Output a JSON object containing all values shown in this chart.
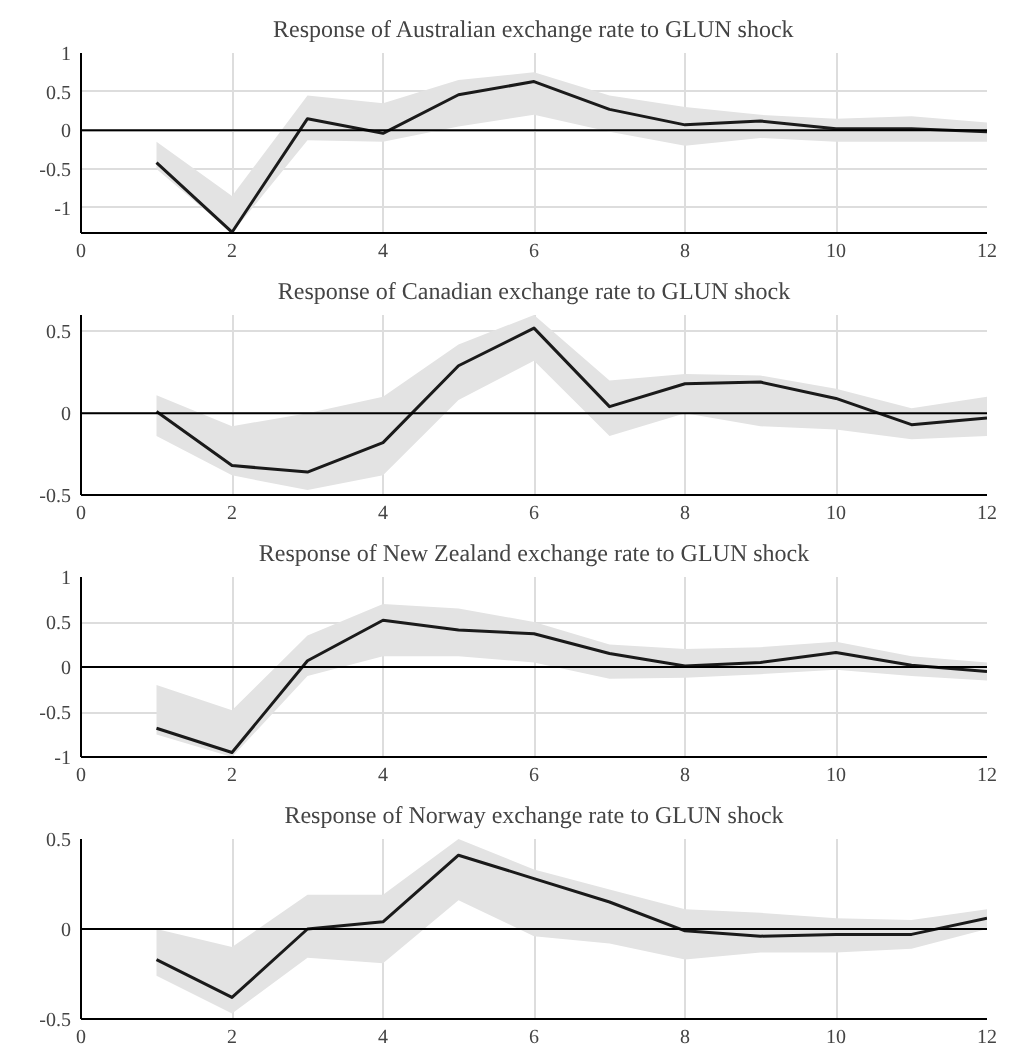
{
  "chart_data": [
    {
      "type": "line",
      "title": "Response of Australian exchange rate to GLUN shock",
      "x": [
        1,
        2,
        3,
        4,
        5,
        6,
        7,
        8,
        9,
        10,
        11,
        12
      ],
      "xlim": [
        0,
        12
      ],
      "xticks": [
        0,
        2,
        4,
        6,
        8,
        10,
        12
      ],
      "ylim": [
        -1.33,
        1
      ],
      "yticks": [
        -1,
        -0.5,
        0,
        0.5,
        1
      ],
      "grid": true,
      "ref_lines": [
        {
          "axis": "y",
          "value": 0,
          "color": "#000000"
        }
      ],
      "series": [
        {
          "color": "#1a1a1a",
          "values": [
            -0.42,
            -1.32,
            0.15,
            -0.04,
            0.46,
            0.63,
            0.27,
            0.07,
            0.12,
            0.02,
            0.02,
            -0.02
          ],
          "lower": [
            -0.5,
            -1.33,
            -0.13,
            -0.15,
            0.05,
            0.2,
            -0.02,
            -0.2,
            -0.1,
            -0.15,
            -0.15,
            -0.15
          ],
          "upper": [
            -0.15,
            -0.85,
            0.45,
            0.35,
            0.65,
            0.75,
            0.45,
            0.3,
            0.2,
            0.15,
            0.18,
            0.1
          ]
        }
      ]
    },
    {
      "type": "line",
      "title": "Response of Canadian exchange rate to GLUN shock",
      "x": [
        1,
        2,
        3,
        4,
        5,
        6,
        7,
        8,
        9,
        10,
        11,
        12
      ],
      "xlim": [
        0,
        12
      ],
      "xticks": [
        0,
        2,
        4,
        6,
        8,
        10,
        12
      ],
      "ylim": [
        -0.5,
        0.6
      ],
      "yticks": [
        -0.5,
        0,
        0.5
      ],
      "grid": true,
      "ref_lines": [
        {
          "axis": "y",
          "value": 0,
          "color": "#000000"
        }
      ],
      "series": [
        {
          "color": "#1a1a1a",
          "values": [
            0.01,
            -0.32,
            -0.36,
            -0.18,
            0.29,
            0.52,
            0.04,
            0.18,
            0.19,
            0.09,
            -0.07,
            -0.03
          ],
          "lower": [
            -0.14,
            -0.38,
            -0.47,
            -0.38,
            0.08,
            0.32,
            -0.14,
            0.0,
            -0.08,
            -0.1,
            -0.16,
            -0.14
          ],
          "upper": [
            0.11,
            -0.08,
            0.0,
            0.1,
            0.42,
            0.6,
            0.2,
            0.24,
            0.23,
            0.15,
            0.03,
            0.1
          ]
        }
      ]
    },
    {
      "type": "line",
      "title": "Response of New Zealand exchange rate to GLUN shock",
      "x": [
        1,
        2,
        3,
        4,
        5,
        6,
        7,
        8,
        9,
        10,
        11,
        12
      ],
      "xlim": [
        0,
        12
      ],
      "xticks": [
        0,
        2,
        4,
        6,
        8,
        10,
        12
      ],
      "ylim": [
        -1,
        1
      ],
      "yticks": [
        -1,
        -0.5,
        0,
        0.5,
        1
      ],
      "grid": true,
      "ref_lines": [
        {
          "axis": "y",
          "value": 0,
          "color": "#000000"
        }
      ],
      "series": [
        {
          "color": "#1a1a1a",
          "values": [
            -0.68,
            -0.95,
            0.07,
            0.52,
            0.41,
            0.37,
            0.15,
            0.01,
            0.05,
            0.16,
            0.02,
            -0.05
          ],
          "lower": [
            -0.75,
            -1.0,
            -0.1,
            0.12,
            0.12,
            0.05,
            -0.13,
            -0.12,
            -0.08,
            -0.03,
            -0.1,
            -0.15
          ],
          "upper": [
            -0.2,
            -0.48,
            0.35,
            0.7,
            0.65,
            0.5,
            0.25,
            0.2,
            0.22,
            0.28,
            0.12,
            0.05
          ]
        }
      ]
    },
    {
      "type": "line",
      "title": "Response of Norway exchange rate to GLUN shock",
      "x": [
        1,
        2,
        3,
        4,
        5,
        6,
        7,
        8,
        9,
        10,
        11,
        12
      ],
      "xlim": [
        0,
        12
      ],
      "xticks": [
        0,
        2,
        4,
        6,
        8,
        10,
        12
      ],
      "ylim": [
        -0.5,
        0.5
      ],
      "yticks": [
        -0.5,
        0,
        0.5
      ],
      "grid": true,
      "ref_lines": [
        {
          "axis": "y",
          "value": 0,
          "color": "#000000"
        }
      ],
      "series": [
        {
          "color": "#1a1a1a",
          "values": [
            -0.17,
            -0.38,
            0.0,
            0.04,
            0.41,
            0.28,
            0.15,
            -0.01,
            -0.04,
            -0.03,
            -0.03,
            0.06
          ],
          "lower": [
            -0.26,
            -0.47,
            -0.16,
            -0.19,
            0.16,
            -0.04,
            -0.08,
            -0.17,
            -0.13,
            -0.13,
            -0.11,
            0.0
          ],
          "upper": [
            0.0,
            -0.1,
            0.19,
            0.19,
            0.5,
            0.33,
            0.22,
            0.11,
            0.09,
            0.06,
            0.05,
            0.11
          ]
        }
      ]
    }
  ]
}
